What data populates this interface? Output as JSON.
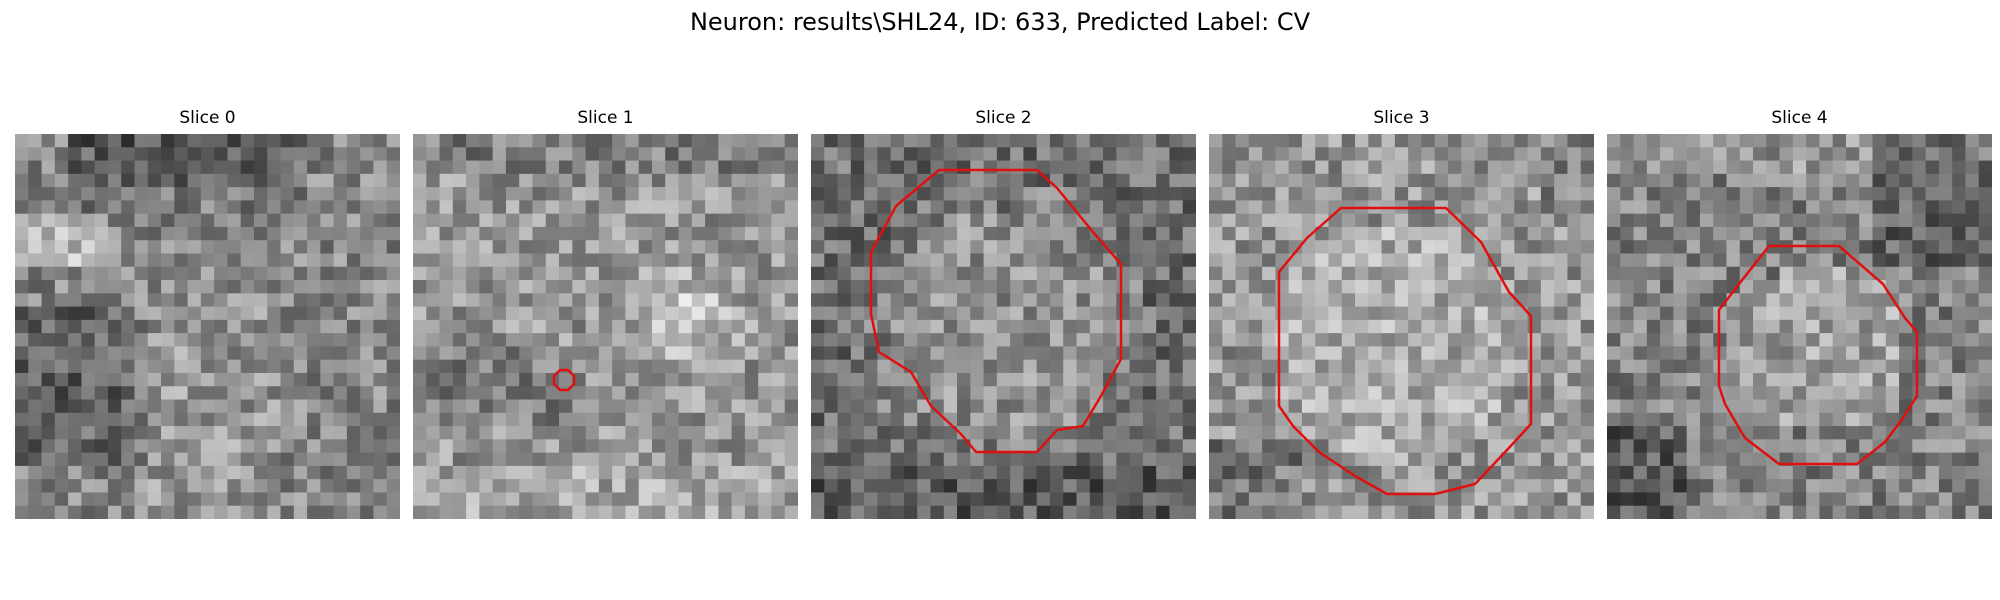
{
  "figure": {
    "title": "Neuron: results\\SHL24, ID: 633, Predicted Label: CV"
  },
  "colors": {
    "contour": "#e01010",
    "background": "#ffffff"
  },
  "panels": [
    {
      "title": "Slice 0",
      "contour": "none"
    },
    {
      "title": "Slice 1",
      "contour": "small octagon"
    },
    {
      "title": "Slice 2",
      "contour": "large octagon"
    },
    {
      "title": "Slice 3",
      "contour": "large octagon"
    },
    {
      "title": "Slice 4",
      "contour": "medium octagon"
    }
  ]
}
